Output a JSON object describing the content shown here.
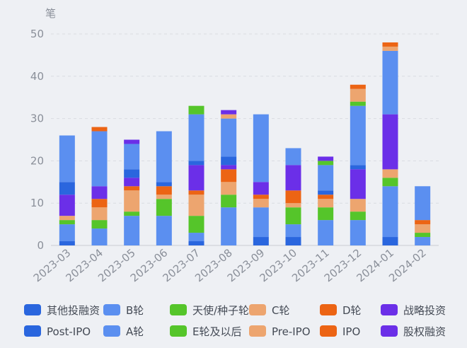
{
  "chart_data": {
    "type": "bar",
    "stacked": true,
    "unit_label": "笔",
    "ylim": [
      0,
      50
    ],
    "yticks": [
      0,
      10,
      20,
      30,
      40,
      50
    ],
    "grid": true,
    "legend_placement": "bottom",
    "categories": [
      "2023-03",
      "2023-04",
      "2023-05",
      "2023-06",
      "2023-07",
      "2023-08",
      "2023-09",
      "2023-10",
      "2023-11",
      "2023-12",
      "2024-01",
      "2024-02"
    ],
    "series": [
      {
        "name": "Post-IPO",
        "color": "#2a66de",
        "values": [
          1,
          0,
          0,
          0,
          1,
          0,
          2,
          2,
          0,
          0,
          2,
          0
        ]
      },
      {
        "name": "A轮",
        "color": "#5b8ff0",
        "values": [
          4,
          4,
          7,
          7,
          2,
          9,
          7,
          3,
          6,
          6,
          12,
          2
        ]
      },
      {
        "name": "E轮及以后",
        "color": "#55c52a",
        "values": [
          1,
          2,
          1,
          4,
          4,
          3,
          0,
          4,
          3,
          2,
          2,
          1
        ]
      },
      {
        "name": "Pre-IPO",
        "color": "#eda56f",
        "values": [
          1,
          3,
          5,
          1,
          5,
          3,
          2,
          1,
          2,
          3,
          2,
          2
        ]
      },
      {
        "name": "IPO",
        "color": "#ec6414",
        "values": [
          0,
          2,
          1,
          2,
          1,
          3,
          1,
          3,
          1,
          0,
          0,
          1
        ]
      },
      {
        "name": "股权融资",
        "color": "#6b2fe8",
        "values": [
          5,
          3,
          2,
          0,
          6,
          1,
          3,
          6,
          0,
          7,
          13,
          0
        ]
      },
      {
        "name": "其他投融资",
        "color": "#2a66de",
        "values": [
          3,
          0,
          2,
          1,
          1,
          2,
          0,
          0,
          1,
          1,
          0,
          0
        ]
      },
      {
        "name": "B轮",
        "color": "#5b8ff0",
        "values": [
          11,
          13,
          6,
          12,
          11,
          9,
          16,
          4,
          6,
          14,
          15,
          8
        ]
      },
      {
        "name": "天使/种子轮",
        "color": "#55c52a",
        "values": [
          0,
          0,
          0,
          0,
          2,
          0,
          0,
          0,
          1,
          1,
          0,
          0
        ]
      },
      {
        "name": "C轮",
        "color": "#eda56f",
        "values": [
          0,
          0,
          0,
          0,
          0,
          1,
          0,
          0,
          0,
          3,
          1,
          0
        ]
      },
      {
        "name": "D轮",
        "color": "#ec6414",
        "values": [
          0,
          1,
          0,
          0,
          0,
          0,
          0,
          0,
          0,
          1,
          1,
          0
        ]
      },
      {
        "name": "战略投资",
        "color": "#6b2fe8",
        "values": [
          0,
          0,
          1,
          0,
          0,
          1,
          0,
          0,
          1,
          0,
          0,
          0
        ]
      }
    ],
    "legend_rows": [
      [
        "其他投融资",
        "B轮",
        "天使/种子轮",
        "C轮",
        "D轮",
        "战略投资"
      ],
      [
        "Post-IPO",
        "A轮",
        "E轮及以后",
        "Pre-IPO",
        "IPO",
        "股权融资"
      ]
    ]
  }
}
